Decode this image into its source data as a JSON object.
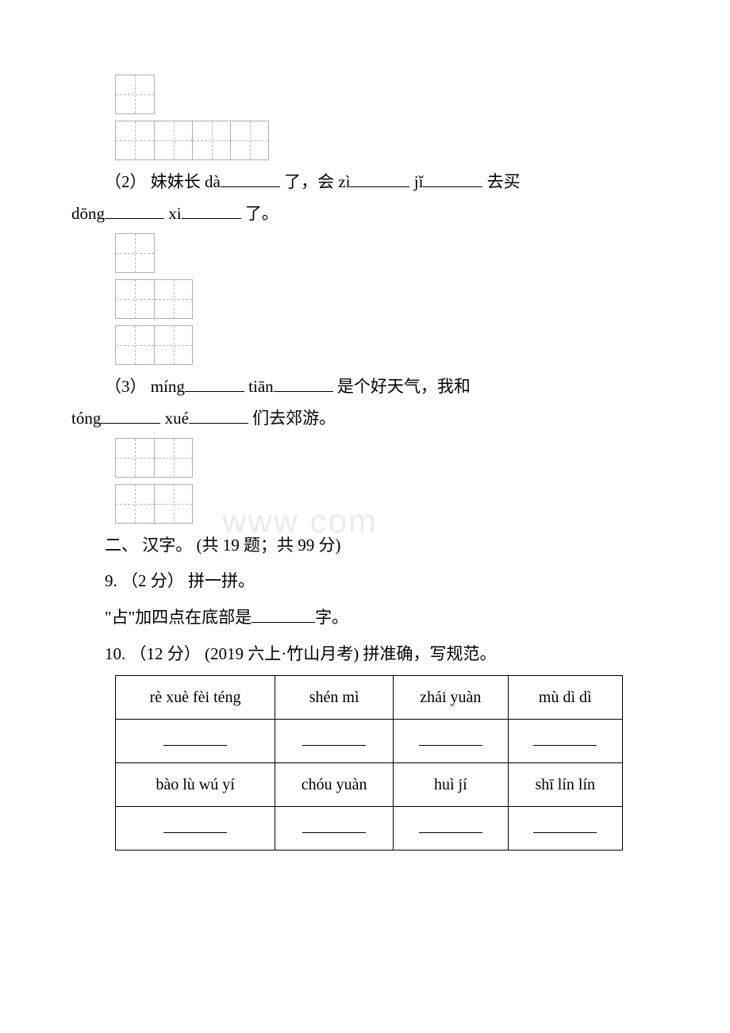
{
  "watermark": "www            com",
  "grid1": {
    "cells": 1
  },
  "grid2": {
    "cells": 4
  },
  "q2": {
    "prefix": "（2） 妹妹长 dà",
    "mid1": " 了，会 zì",
    "mid2": " jǐ",
    "mid3": " 去买",
    "line2a": "dōng",
    "line2b": " xi",
    "line2c": " 了。"
  },
  "grid3": {
    "cells": 1
  },
  "grid4": {
    "cells": 2
  },
  "grid5": {
    "cells": 2
  },
  "q3": {
    "prefix": "（3） míng",
    "mid1": " tiān",
    "mid2": " 是个好天气，我和",
    "line2a": "tóng",
    "line2b": " xué",
    "line2c": " 们去郊游。"
  },
  "grid6": {
    "cells": 2
  },
  "grid7": {
    "cells": 2
  },
  "section2": {
    "title": "二、 汉字。 (共 19 题；共 99 分)"
  },
  "q9": {
    "header": "9. （2 分） 拼一拼。",
    "body_a": "\"占\"加四点在底部是",
    "body_b": "字。"
  },
  "q10": {
    "header": "10. （12 分） (2019 六上·竹山月考) 拼准确，写规范。"
  },
  "table": {
    "row1": [
      "rè xuè fèi téng",
      "shén mì",
      "zhái yuàn",
      "mù dì dì"
    ],
    "row2": [
      "bào lù wú yí",
      "chóu yuàn",
      "huì jí",
      "shī lín lín"
    ]
  }
}
